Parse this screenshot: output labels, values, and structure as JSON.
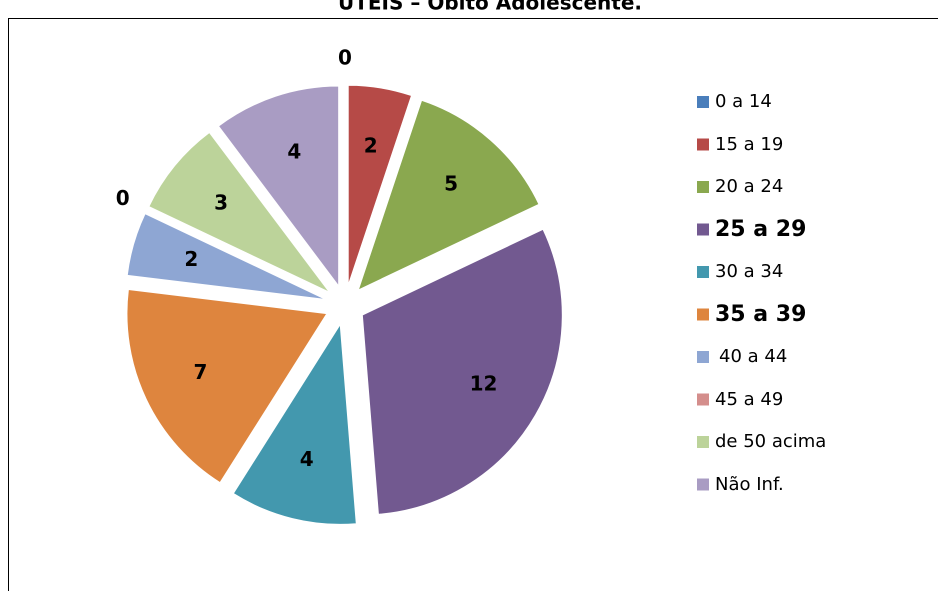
{
  "chart_data": {
    "type": "pie",
    "title": "UTEIS – Óbito Adolescente.",
    "categories": [
      "0 a 14",
      "15 a 19",
      "20 a 24",
      "25 a 29",
      "30 a 34",
      "35 a 39",
      "40 a 44",
      "45 a 49",
      "de 50 acima",
      "Não Inf."
    ],
    "values": [
      0,
      2,
      5,
      12,
      4,
      7,
      2,
      0,
      3,
      4
    ],
    "colors": [
      "#4a7ebb",
      "#b64a47",
      "#8aa84f",
      "#725990",
      "#4398ae",
      "#de853e",
      "#8ea6d3",
      "#d48e8c",
      "#bcd39a",
      "#a99cc3"
    ],
    "legend": "right"
  }
}
